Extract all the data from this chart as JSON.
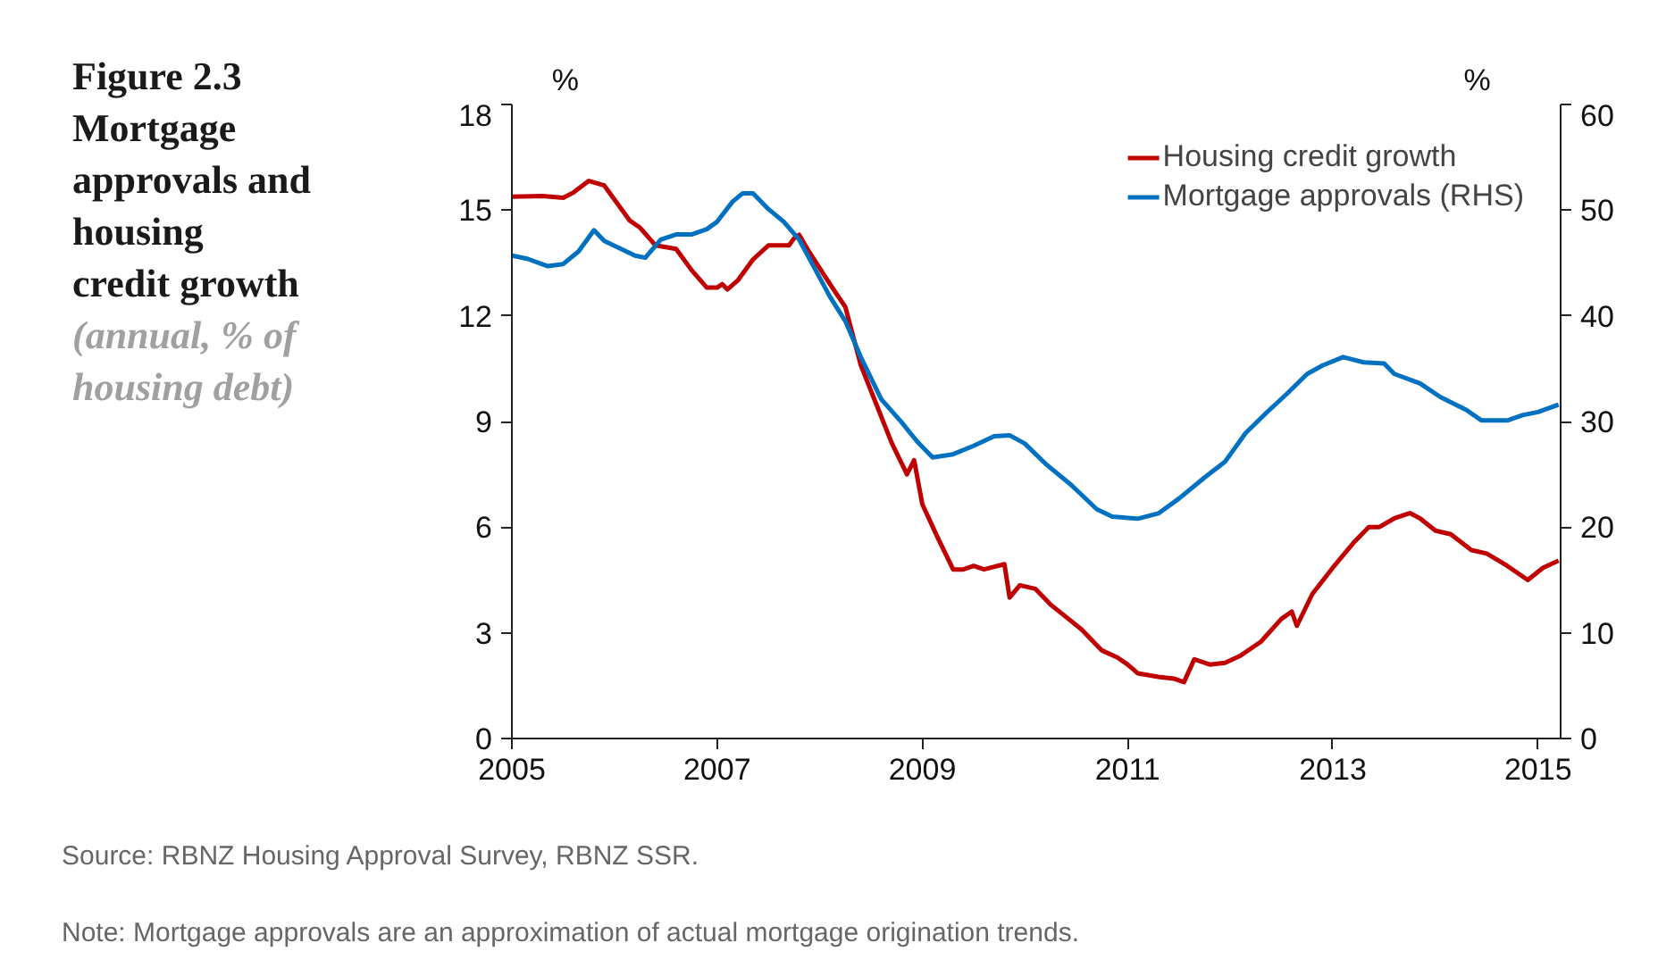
{
  "chart_data": {
    "type": "line",
    "title": "Figure 2.3 Mortgage approvals and housing credit growth",
    "subtitle": "(annual, % of housing debt)",
    "ylabel": "%",
    "y2label": "%",
    "xlim": [
      2005,
      2015.22
    ],
    "xticks": [
      2005,
      2007,
      2009,
      2011,
      2013,
      2015
    ],
    "ylim": [
      0,
      18
    ],
    "yticks": [
      0,
      3,
      6,
      9,
      12,
      15,
      18
    ],
    "y2lim": [
      0,
      60
    ],
    "y2ticks": [
      0,
      10,
      20,
      30,
      40,
      50,
      60
    ],
    "grid": false,
    "legend": "top right",
    "marker": "none",
    "line_style": "solid",
    "series": [
      {
        "name": "Housing credit growth",
        "color": "#c00000",
        "x": [
          2005.0,
          2005.3,
          2005.5,
          2005.6,
          2005.75,
          2005.9,
          2006.0,
          2006.15,
          2006.25,
          2006.4,
          2006.6,
          2006.75,
          2006.9,
          2007.0,
          2007.05,
          2007.1,
          2007.2,
          2007.35,
          2007.5,
          2007.7,
          2007.75,
          2007.8,
          2007.9,
          2008.1,
          2008.25,
          2008.4,
          2008.55,
          2008.7,
          2008.85,
          2008.92,
          2009.0,
          2009.15,
          2009.3,
          2009.4,
          2009.5,
          2009.6,
          2009.8,
          2009.85,
          2009.95,
          2010.1,
          2010.25,
          2010.4,
          2010.55,
          2010.75,
          2010.9,
          2011.0,
          2011.1,
          2011.3,
          2011.45,
          2011.55,
          2011.65,
          2011.8,
          2011.95,
          2012.1,
          2012.3,
          2012.5,
          2012.6,
          2012.65,
          2012.8,
          2013.0,
          2013.2,
          2013.35,
          2013.45,
          2013.6,
          2013.75,
          2013.85,
          2014.0,
          2014.15,
          2014.35,
          2014.5,
          2014.7,
          2014.9,
          2015.05,
          2015.2
        ],
        "values": [
          15.38,
          15.4,
          15.35,
          15.5,
          15.83,
          15.7,
          15.3,
          14.7,
          14.5,
          14.0,
          13.9,
          13.3,
          12.8,
          12.8,
          12.9,
          12.75,
          13.0,
          13.6,
          14.0,
          14.0,
          14.2,
          14.3,
          13.8,
          12.9,
          12.25,
          10.6,
          9.5,
          8.4,
          7.5,
          7.9,
          6.65,
          5.7,
          4.8,
          4.8,
          4.9,
          4.8,
          4.95,
          4.0,
          4.35,
          4.25,
          3.8,
          3.45,
          3.1,
          2.5,
          2.3,
          2.1,
          1.85,
          1.75,
          1.7,
          1.6,
          2.25,
          2.1,
          2.15,
          2.35,
          2.75,
          3.4,
          3.6,
          3.2,
          4.1,
          4.85,
          5.55,
          6.0,
          6.0,
          6.25,
          6.4,
          6.25,
          5.9,
          5.8,
          5.35,
          5.25,
          4.9,
          4.5,
          4.85,
          5.05
        ]
      },
      {
        "name": "Mortgage approvals (RHS)",
        "color": "#0070c0",
        "axis": "y2",
        "x": [
          2005.0,
          2005.15,
          2005.35,
          2005.5,
          2005.65,
          2005.8,
          2005.9,
          2006.05,
          2006.2,
          2006.3,
          2006.45,
          2006.6,
          2006.75,
          2006.9,
          2007.0,
          2007.15,
          2007.25,
          2007.35,
          2007.5,
          2007.65,
          2007.8,
          2007.95,
          2008.1,
          2008.25,
          2008.4,
          2008.6,
          2008.8,
          2008.95,
          2009.1,
          2009.3,
          2009.5,
          2009.7,
          2009.85,
          2010.0,
          2010.2,
          2010.45,
          2010.7,
          2010.85,
          2011.1,
          2011.3,
          2011.5,
          2011.75,
          2011.95,
          2012.15,
          2012.35,
          2012.55,
          2012.75,
          2012.9,
          2013.1,
          2013.3,
          2013.5,
          2013.6,
          2013.85,
          2014.05,
          2014.3,
          2014.45,
          2014.7,
          2014.85,
          2015.0,
          2015.2
        ],
        "values": [
          45.7,
          45.4,
          44.7,
          44.9,
          46.1,
          48.1,
          47.1,
          46.4,
          45.7,
          45.5,
          47.2,
          47.7,
          47.7,
          48.2,
          48.9,
          50.8,
          51.6,
          51.6,
          50.1,
          48.9,
          47.2,
          44.5,
          41.8,
          39.5,
          36.1,
          32.1,
          29.9,
          28.1,
          26.6,
          26.9,
          27.7,
          28.6,
          28.7,
          27.9,
          26.0,
          24.0,
          21.7,
          21.0,
          20.8,
          21.3,
          22.7,
          24.7,
          26.2,
          28.9,
          30.8,
          32.6,
          34.5,
          35.3,
          36.1,
          35.6,
          35.5,
          34.5,
          33.6,
          32.3,
          31.1,
          30.1,
          30.1,
          30.6,
          30.9,
          31.6
        ]
      }
    ],
    "annotations": [
      "Source:   RBNZ Housing Approval Survey, RBNZ SSR.",
      "Note:      Mortgage approvals are an approximation of actual mortgage origination trends."
    ]
  }
}
